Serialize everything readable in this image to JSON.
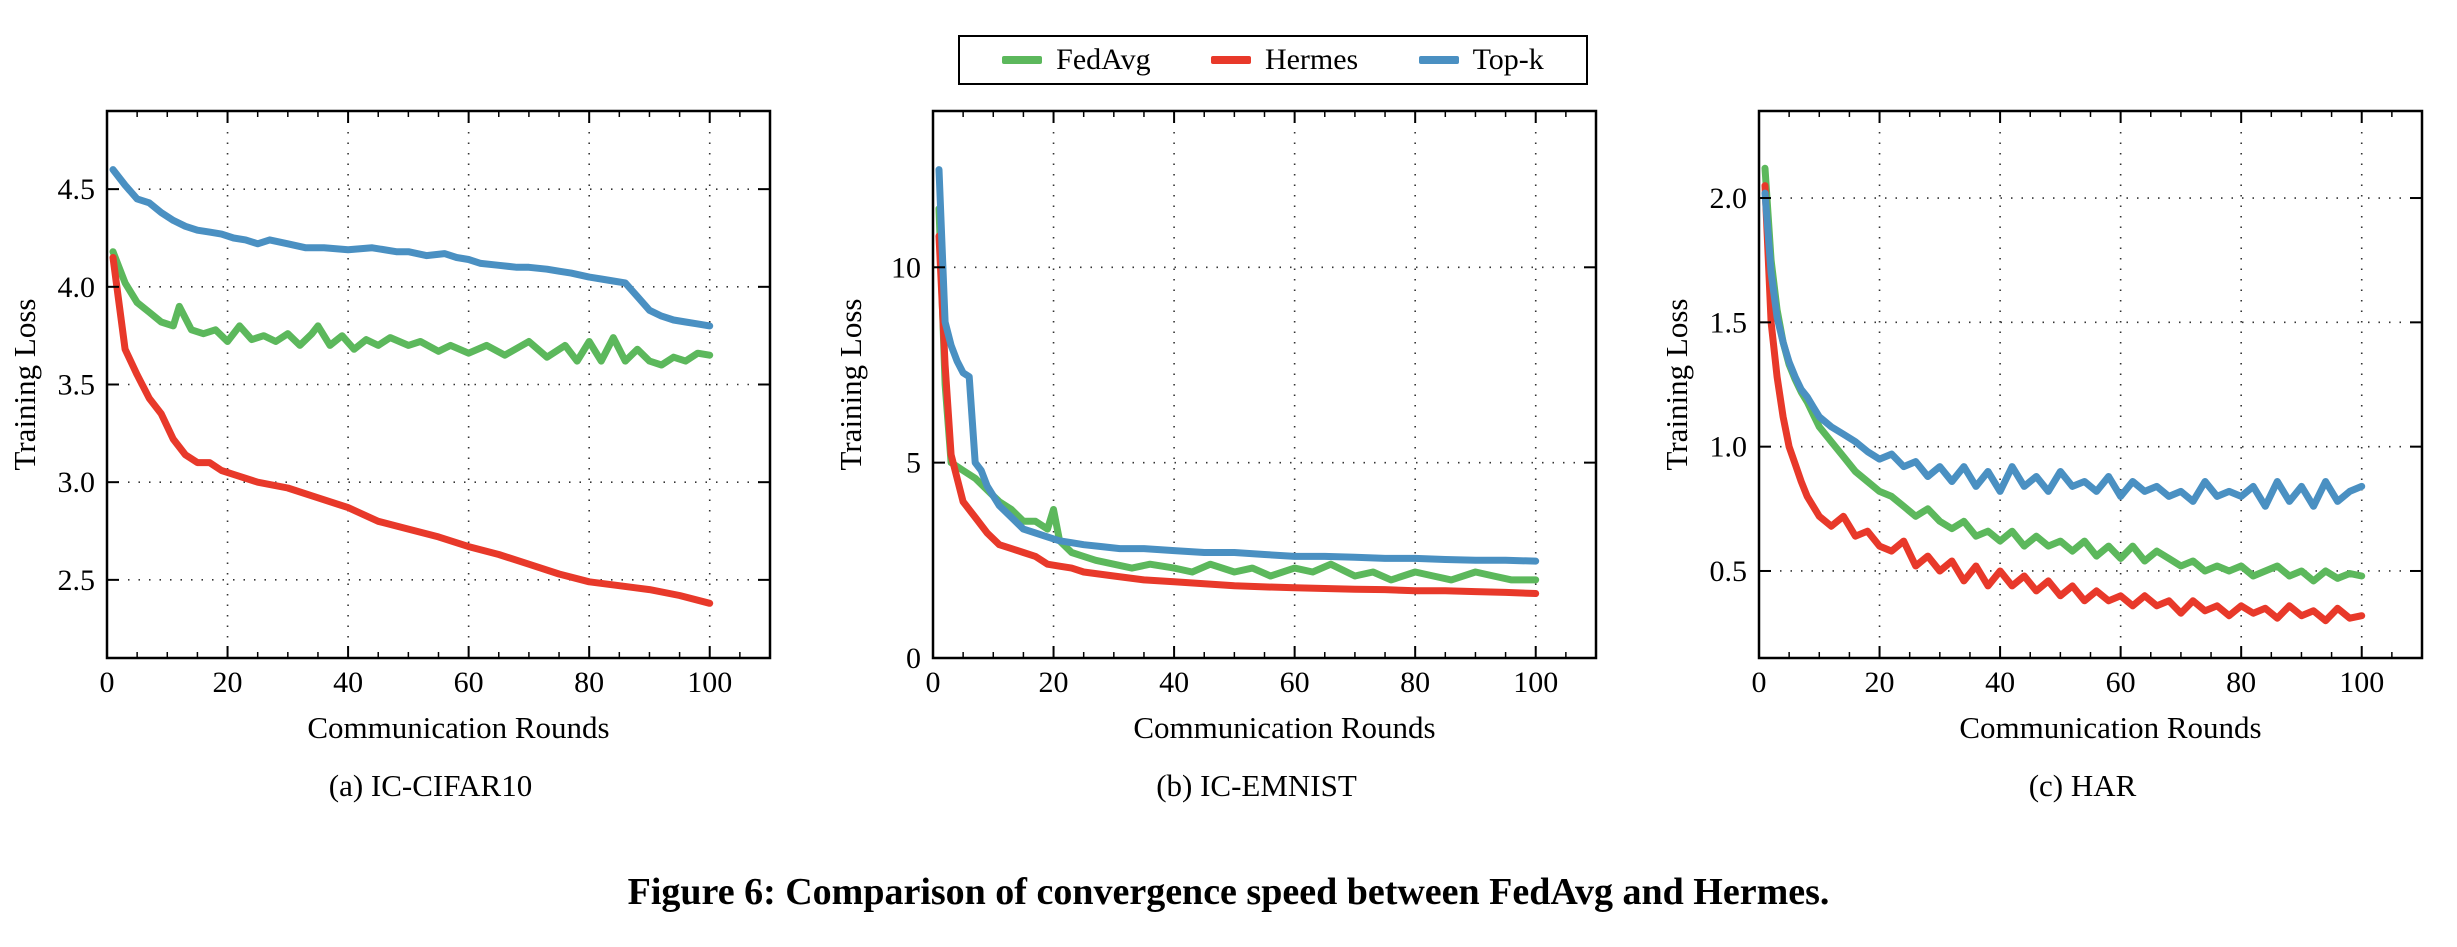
{
  "legend": {
    "fedavg": "FedAvg",
    "hermes": "Hermes",
    "topk": "Top-k"
  },
  "colors": {
    "fedavg": "#5cb85c",
    "hermes": "#e8392a",
    "topk": "#4a90c2"
  },
  "caption": "Figure 6: Comparison of convergence speed between FedAvg and Hermes.",
  "chart_data": [
    {
      "type": "line",
      "subtitle": "(a) IC-CIFAR10",
      "xlabel": "Communication Rounds",
      "ylabel": "Training Loss",
      "xlim": [
        0,
        110
      ],
      "ylim": [
        2.1,
        4.9
      ],
      "xticks": [
        0,
        20,
        40,
        60,
        80,
        100
      ],
      "yticks": [
        2.5,
        3.0,
        3.5,
        4.0,
        4.5
      ],
      "ytick_labels": [
        "2.5",
        "3.0",
        "3.5",
        "4.0",
        "4.5"
      ],
      "grid": true,
      "series": [
        {
          "name": "FedAvg",
          "color_key": "fedavg",
          "x": [
            1,
            3,
            5,
            7,
            9,
            11,
            12,
            14,
            16,
            18,
            20,
            22,
            24,
            26,
            28,
            30,
            32,
            34,
            35,
            37,
            39,
            41,
            43,
            45,
            47,
            50,
            52,
            55,
            57,
            60,
            63,
            66,
            70,
            73,
            76,
            78,
            80,
            82,
            84,
            86,
            88,
            90,
            92,
            94,
            96,
            98,
            100
          ],
          "y": [
            4.18,
            4.02,
            3.92,
            3.87,
            3.82,
            3.8,
            3.9,
            3.78,
            3.76,
            3.78,
            3.72,
            3.8,
            3.73,
            3.75,
            3.72,
            3.76,
            3.7,
            3.76,
            3.8,
            3.7,
            3.75,
            3.68,
            3.73,
            3.7,
            3.74,
            3.7,
            3.72,
            3.67,
            3.7,
            3.66,
            3.7,
            3.65,
            3.72,
            3.64,
            3.7,
            3.62,
            3.72,
            3.62,
            3.74,
            3.62,
            3.68,
            3.62,
            3.6,
            3.64,
            3.62,
            3.66,
            3.65
          ]
        },
        {
          "name": "Hermes",
          "color_key": "hermes",
          "x": [
            1,
            3,
            5,
            7,
            9,
            11,
            13,
            15,
            17,
            19,
            21,
            25,
            30,
            35,
            40,
            45,
            50,
            55,
            60,
            65,
            70,
            75,
            80,
            85,
            90,
            95,
            100
          ],
          "y": [
            4.15,
            3.68,
            3.55,
            3.43,
            3.35,
            3.22,
            3.14,
            3.1,
            3.1,
            3.06,
            3.04,
            3.0,
            2.97,
            2.92,
            2.87,
            2.8,
            2.76,
            2.72,
            2.67,
            2.63,
            2.58,
            2.53,
            2.49,
            2.47,
            2.45,
            2.42,
            2.38
          ]
        },
        {
          "name": "Top-k",
          "color_key": "topk",
          "x": [
            1,
            3,
            5,
            7,
            9,
            11,
            13,
            15,
            17,
            19,
            21,
            23,
            25,
            27,
            30,
            33,
            36,
            40,
            44,
            48,
            50,
            53,
            56,
            58,
            60,
            62,
            65,
            68,
            70,
            73,
            75,
            77,
            80,
            82,
            84,
            86,
            88,
            90,
            92,
            94,
            96,
            98,
            100
          ],
          "y": [
            4.6,
            4.52,
            4.45,
            4.43,
            4.38,
            4.34,
            4.31,
            4.29,
            4.28,
            4.27,
            4.25,
            4.24,
            4.22,
            4.24,
            4.22,
            4.2,
            4.2,
            4.19,
            4.2,
            4.18,
            4.18,
            4.16,
            4.17,
            4.15,
            4.14,
            4.12,
            4.11,
            4.1,
            4.1,
            4.09,
            4.08,
            4.07,
            4.05,
            4.04,
            4.03,
            4.02,
            3.95,
            3.88,
            3.85,
            3.83,
            3.82,
            3.81,
            3.8
          ]
        }
      ]
    },
    {
      "type": "line",
      "subtitle": "(b) IC-EMNIST",
      "xlabel": "Communication Rounds",
      "ylabel": "Training Loss",
      "xlim": [
        0,
        110
      ],
      "ylim": [
        0,
        14
      ],
      "xticks": [
        0,
        20,
        40,
        60,
        80,
        100
      ],
      "yticks": [
        0,
        5,
        10
      ],
      "ytick_labels": [
        "0",
        "5",
        "10"
      ],
      "grid": true,
      "series": [
        {
          "name": "FedAvg",
          "color_key": "fedavg",
          "x": [
            1,
            2,
            3,
            5,
            7,
            9,
            11,
            13,
            15,
            17,
            19,
            20,
            21,
            23,
            25,
            27,
            30,
            33,
            36,
            40,
            43,
            46,
            50,
            53,
            56,
            60,
            63,
            66,
            70,
            73,
            76,
            80,
            83,
            86,
            90,
            93,
            96,
            100
          ],
          "y": [
            11.5,
            7.0,
            5.0,
            4.8,
            4.6,
            4.3,
            4.0,
            3.8,
            3.5,
            3.5,
            3.3,
            3.8,
            3.0,
            2.7,
            2.6,
            2.5,
            2.4,
            2.3,
            2.4,
            2.3,
            2.2,
            2.4,
            2.2,
            2.3,
            2.1,
            2.3,
            2.2,
            2.4,
            2.1,
            2.2,
            2.0,
            2.2,
            2.1,
            2.0,
            2.2,
            2.1,
            2.0,
            2.0
          ]
        },
        {
          "name": "Hermes",
          "color_key": "hermes",
          "x": [
            1,
            2,
            3,
            5,
            7,
            9,
            11,
            13,
            15,
            17,
            19,
            21,
            23,
            25,
            30,
            35,
            40,
            45,
            50,
            55,
            60,
            65,
            70,
            75,
            80,
            85,
            90,
            95,
            100
          ],
          "y": [
            10.8,
            7.5,
            5.2,
            4.0,
            3.6,
            3.2,
            2.9,
            2.8,
            2.7,
            2.6,
            2.4,
            2.35,
            2.3,
            2.2,
            2.1,
            2.0,
            1.95,
            1.9,
            1.85,
            1.82,
            1.8,
            1.78,
            1.76,
            1.75,
            1.72,
            1.72,
            1.7,
            1.68,
            1.65
          ]
        },
        {
          "name": "Top-k",
          "color_key": "topk",
          "x": [
            1,
            2,
            3,
            4,
            5,
            6,
            7,
            8,
            9,
            11,
            13,
            15,
            17,
            19,
            21,
            23,
            25,
            28,
            31,
            35,
            40,
            45,
            50,
            55,
            60,
            65,
            70,
            75,
            80,
            85,
            90,
            95,
            100
          ],
          "y": [
            12.5,
            8.6,
            8.0,
            7.6,
            7.3,
            7.2,
            5.0,
            4.8,
            4.4,
            3.9,
            3.6,
            3.3,
            3.2,
            3.1,
            3.0,
            2.95,
            2.9,
            2.85,
            2.8,
            2.8,
            2.75,
            2.7,
            2.7,
            2.65,
            2.6,
            2.6,
            2.58,
            2.55,
            2.55,
            2.52,
            2.5,
            2.5,
            2.48
          ]
        }
      ]
    },
    {
      "type": "line",
      "subtitle": "(c) HAR",
      "xlabel": "Communication Rounds",
      "ylabel": "Training Loss",
      "xlim": [
        0,
        110
      ],
      "ylim": [
        0.15,
        2.35
      ],
      "xticks": [
        0,
        20,
        40,
        60,
        80,
        100
      ],
      "yticks": [
        0.5,
        1.0,
        1.5,
        2.0
      ],
      "ytick_labels": [
        "0.5",
        "1.0",
        "1.5",
        "2.0"
      ],
      "grid": true,
      "series": [
        {
          "name": "FedAvg",
          "color_key": "fedavg",
          "x": [
            1,
            2,
            3,
            4,
            5,
            6,
            7,
            8,
            9,
            10,
            12,
            14,
            16,
            18,
            20,
            22,
            24,
            26,
            28,
            30,
            32,
            34,
            36,
            38,
            40,
            42,
            44,
            46,
            48,
            50,
            52,
            54,
            56,
            58,
            60,
            62,
            64,
            66,
            68,
            70,
            72,
            74,
            76,
            78,
            80,
            82,
            84,
            86,
            88,
            90,
            92,
            94,
            96,
            98,
            100
          ],
          "y": [
            2.12,
            1.75,
            1.55,
            1.42,
            1.33,
            1.27,
            1.22,
            1.18,
            1.13,
            1.08,
            1.02,
            0.96,
            0.9,
            0.86,
            0.82,
            0.8,
            0.76,
            0.72,
            0.75,
            0.7,
            0.67,
            0.7,
            0.64,
            0.66,
            0.62,
            0.66,
            0.6,
            0.64,
            0.6,
            0.62,
            0.58,
            0.62,
            0.56,
            0.6,
            0.55,
            0.6,
            0.54,
            0.58,
            0.55,
            0.52,
            0.54,
            0.5,
            0.52,
            0.5,
            0.52,
            0.48,
            0.5,
            0.52,
            0.48,
            0.5,
            0.46,
            0.5,
            0.47,
            0.49,
            0.48
          ]
        },
        {
          "name": "Hermes",
          "color_key": "hermes",
          "x": [
            1,
            2,
            3,
            4,
            5,
            6,
            7,
            8,
            9,
            10,
            12,
            14,
            16,
            18,
            20,
            22,
            24,
            26,
            28,
            30,
            32,
            34,
            36,
            38,
            40,
            42,
            44,
            46,
            48,
            50,
            52,
            54,
            56,
            58,
            60,
            62,
            64,
            66,
            68,
            70,
            72,
            74,
            76,
            78,
            80,
            82,
            84,
            86,
            88,
            90,
            92,
            94,
            96,
            98,
            100
          ],
          "y": [
            2.05,
            1.5,
            1.28,
            1.12,
            1.0,
            0.93,
            0.86,
            0.8,
            0.76,
            0.72,
            0.68,
            0.72,
            0.64,
            0.66,
            0.6,
            0.58,
            0.62,
            0.52,
            0.56,
            0.5,
            0.54,
            0.46,
            0.52,
            0.44,
            0.5,
            0.44,
            0.48,
            0.42,
            0.46,
            0.4,
            0.44,
            0.38,
            0.42,
            0.38,
            0.4,
            0.36,
            0.4,
            0.36,
            0.38,
            0.33,
            0.38,
            0.34,
            0.36,
            0.32,
            0.36,
            0.33,
            0.35,
            0.31,
            0.36,
            0.32,
            0.34,
            0.3,
            0.35,
            0.31,
            0.32
          ]
        },
        {
          "name": "Top-k",
          "color_key": "topk",
          "x": [
            1,
            2,
            3,
            4,
            5,
            6,
            7,
            8,
            9,
            10,
            12,
            14,
            16,
            18,
            20,
            22,
            24,
            26,
            28,
            30,
            32,
            34,
            36,
            38,
            40,
            42,
            44,
            46,
            48,
            50,
            52,
            54,
            56,
            58,
            60,
            62,
            64,
            66,
            68,
            70,
            72,
            74,
            76,
            78,
            80,
            82,
            84,
            86,
            88,
            90,
            92,
            94,
            96,
            98,
            100
          ],
          "y": [
            2.02,
            1.7,
            1.52,
            1.42,
            1.34,
            1.28,
            1.23,
            1.2,
            1.16,
            1.12,
            1.08,
            1.05,
            1.02,
            0.98,
            0.95,
            0.97,
            0.92,
            0.94,
            0.88,
            0.92,
            0.86,
            0.92,
            0.84,
            0.9,
            0.82,
            0.92,
            0.84,
            0.88,
            0.82,
            0.9,
            0.84,
            0.86,
            0.82,
            0.88,
            0.8,
            0.86,
            0.82,
            0.84,
            0.8,
            0.82,
            0.78,
            0.86,
            0.8,
            0.82,
            0.8,
            0.84,
            0.76,
            0.86,
            0.78,
            0.84,
            0.76,
            0.86,
            0.78,
            0.82,
            0.84
          ]
        }
      ]
    }
  ]
}
